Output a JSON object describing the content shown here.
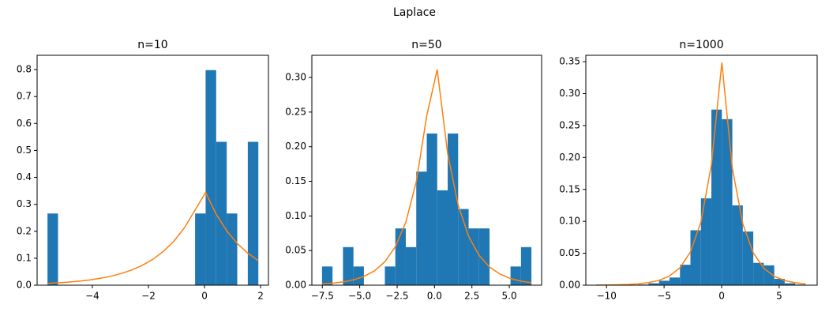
{
  "title": "Laplace",
  "chart_data": [
    {
      "type": "histogram",
      "title": "n=10",
      "color": "#1f77b4",
      "line_color": "#ff7f0e",
      "bins": [
        -5.6,
        -5.224,
        -4.848,
        -4.472,
        -4.096,
        -3.72,
        -3.344,
        -2.968,
        -2.592,
        -2.216,
        -1.84,
        -1.464,
        -1.088,
        -0.712,
        -0.336,
        0.04,
        0.416,
        0.792,
        1.168,
        1.544,
        1.92
      ],
      "values": [
        0.266,
        0,
        0,
        0,
        0,
        0,
        0,
        0,
        0,
        0,
        0,
        0,
        0,
        0,
        0.266,
        0.798,
        0.532,
        0.266,
        0,
        0.532
      ],
      "line_values": [
        0.0067,
        0.0088,
        0.0115,
        0.015,
        0.0195,
        0.0255,
        0.0332,
        0.0434,
        0.0566,
        0.0738,
        0.0962,
        0.1256,
        0.1638,
        0.2137,
        0.2788,
        0.3437,
        0.2634,
        0.2019,
        0.1548,
        0.1187,
        0.0909
      ],
      "xlim": [
        -5.97,
        2.28
      ],
      "ylim": [
        0,
        0.853
      ],
      "xticks": [
        {
          "value": -4,
          "label": "−4"
        },
        {
          "value": -2,
          "label": "−2"
        },
        0,
        2
      ],
      "yticks": [
        {
          "value": 0,
          "label": "0.0"
        },
        0.1,
        0.2,
        0.3,
        0.4,
        0.5,
        0.6,
        0.7,
        0.8
      ]
    },
    {
      "type": "histogram",
      "title": "n=50",
      "color": "#1f77b4",
      "line_color": "#ff7f0e",
      "bins": [
        -7.52,
        -6.82,
        -6.12,
        -5.42,
        -4.72,
        -4.02,
        -3.32,
        -2.62,
        -1.92,
        -1.22,
        -0.52,
        0.18,
        0.88,
        1.58,
        2.28,
        2.98,
        3.68,
        4.38,
        5.08,
        5.78,
        6.48
      ],
      "values": [
        0.027,
        0,
        0.055,
        0.027,
        0,
        0,
        0.027,
        0.082,
        0.055,
        0.164,
        0.219,
        0.137,
        0.219,
        0.11,
        0.082,
        0.082,
        0,
        0,
        0.027,
        0.055
      ],
      "line_values": [
        0.0017,
        0.0028,
        0.0047,
        0.0077,
        0.0126,
        0.0206,
        0.0338,
        0.0554,
        0.0909,
        0.1492,
        0.2447,
        0.3114,
        0.1898,
        0.1157,
        0.0705,
        0.043,
        0.0262,
        0.016,
        0.0097,
        0.0059,
        0.0036
      ],
      "xlim": [
        -8.2,
        7.16
      ],
      "ylim": [
        0,
        0.332
      ],
      "xticks": [
        {
          "value": -7.5,
          "label": "−7.5"
        },
        {
          "value": -5,
          "label": "−5.0"
        },
        {
          "value": -2.5,
          "label": "−2.5"
        },
        {
          "value": 0,
          "label": "0.0"
        },
        2.5,
        {
          "value": 5,
          "label": "5.0"
        }
      ],
      "yticks": [
        {
          "value": 0,
          "label": "0.00"
        },
        0.05,
        {
          "value": 0.1,
          "label": "0.10"
        },
        0.15,
        {
          "value": 0.2,
          "label": "0.20"
        },
        0.25,
        {
          "value": 0.3,
          "label": "0.30"
        }
      ]
    },
    {
      "type": "histogram",
      "title": "n=1000",
      "color": "#1f77b4",
      "line_color": "#ff7f0e",
      "bins": [
        -10.9,
        -9.99,
        -9.08,
        -8.17,
        -7.26,
        -6.35,
        -5.44,
        -4.53,
        -3.62,
        -2.71,
        -1.8,
        -0.89,
        0.02,
        0.93,
        1.84,
        2.75,
        3.66,
        4.57,
        5.48,
        6.39,
        7.3
      ],
      "values": [
        0,
        0,
        0,
        0,
        0.001,
        0.003,
        0.007,
        0.012,
        0.032,
        0.086,
        0.136,
        0.275,
        0.26,
        0.125,
        0.084,
        0.035,
        0.031,
        0.01,
        0.003,
        0.001
      ],
      "line_values": [
        0.0002,
        0.0003,
        0.0006,
        0.0011,
        0.0021,
        0.004,
        0.0075,
        0.0144,
        0.0273,
        0.052,
        0.099,
        0.1885,
        0.3486,
        0.1831,
        0.0962,
        0.0506,
        0.0266,
        0.014,
        0.0073,
        0.0039,
        0.002
      ],
      "xlim": [
        -11.8,
        8.3
      ],
      "ylim": [
        0,
        0.36
      ],
      "xticks": [
        {
          "value": -10,
          "label": "−10"
        },
        {
          "value": -5,
          "label": "−5"
        },
        0,
        5
      ],
      "yticks": [
        {
          "value": 0,
          "label": "0.00"
        },
        0.05,
        {
          "value": 0.1,
          "label": "0.10"
        },
        0.15,
        {
          "value": 0.2,
          "label": "0.20"
        },
        0.25,
        {
          "value": 0.3,
          "label": "0.30"
        },
        0.35
      ]
    }
  ]
}
